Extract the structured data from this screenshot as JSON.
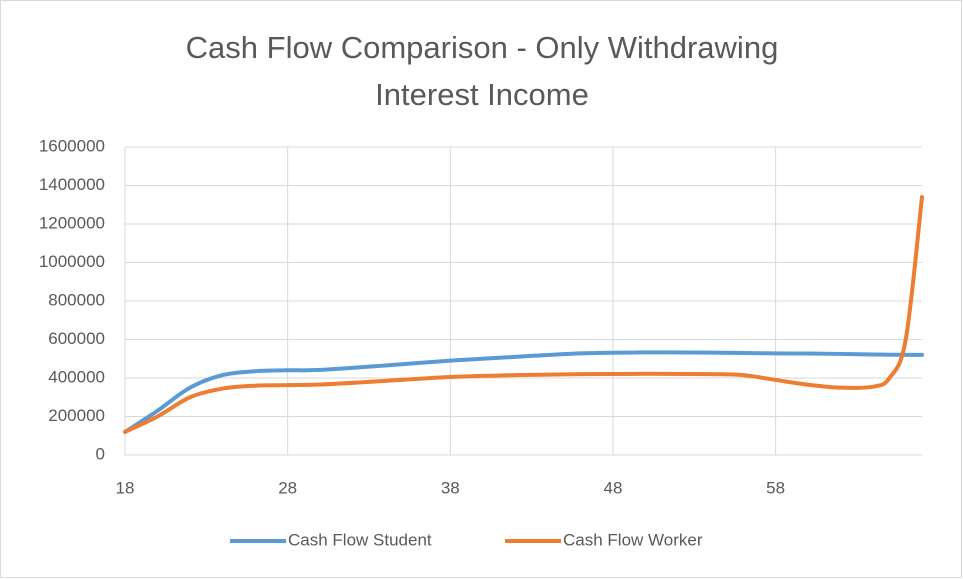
{
  "chart_data": {
    "type": "line",
    "title": "Cash Flow Comparison - Only Withdrawing Interest Income",
    "x": [
      18,
      20,
      22,
      24,
      26,
      28,
      30,
      34,
      38,
      42,
      46,
      50,
      54,
      56,
      58,
      60,
      62,
      64,
      65,
      66,
      67
    ],
    "series": [
      {
        "name": "Cash Flow Student",
        "color": "#5b9bd5",
        "values": [
          120000,
          230000,
          350000,
          415000,
          435000,
          440000,
          442000,
          465000,
          490000,
          510000,
          528000,
          533000,
          532000,
          530000,
          528000,
          527000,
          525000,
          522000,
          521000,
          520000,
          520000
        ]
      },
      {
        "name": "Cash Flow Worker",
        "color": "#ed7d31",
        "values": [
          120000,
          200000,
          300000,
          345000,
          360000,
          363000,
          366000,
          385000,
          405000,
          415000,
          420000,
          422000,
          420000,
          415000,
          390000,
          365000,
          350000,
          355000,
          400000,
          600000,
          1340000
        ]
      }
    ],
    "xlim": [
      18,
      67
    ],
    "xticks": [
      18,
      28,
      38,
      48,
      58
    ],
    "ylim": [
      0,
      1600000
    ],
    "yticks": [
      0,
      200000,
      400000,
      600000,
      800000,
      1000000,
      1200000,
      1400000,
      1600000
    ],
    "grid": true,
    "legend": "bottom"
  }
}
